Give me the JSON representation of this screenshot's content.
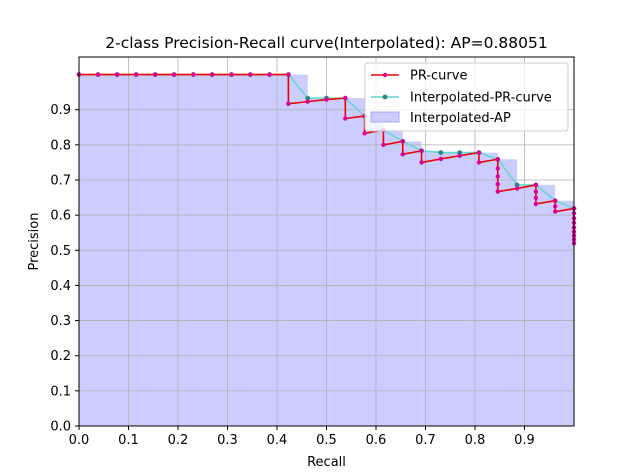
{
  "chart_data": {
    "type": "line",
    "title": "2-class Precision-Recall curve(Interpolated): AP=0.88051",
    "xlabel": "Recall",
    "ylabel": "Precision",
    "xlim": [
      0.0,
      1.0
    ],
    "ylim": [
      0.0,
      1.05
    ],
    "xticks": [
      "0.0",
      "0.1",
      "0.2",
      "0.3",
      "0.4",
      "0.5",
      "0.6",
      "0.7",
      "0.8",
      "0.9"
    ],
    "yticks": [
      "0.0",
      "0.1",
      "0.2",
      "0.3",
      "0.4",
      "0.5",
      "0.6",
      "0.7",
      "0.8",
      "0.9"
    ],
    "grid": true,
    "legend_position": "top-right",
    "legend": [
      "PR-curve",
      "Interpolated-PR-curve",
      "Interpolated-AP"
    ],
    "colors": {
      "pr_curve": "#ee0000",
      "pr_markers": "#dd0099",
      "interp_curve": "#66d6d0",
      "interp_markers": "#2a8a80",
      "ap_fill": "#cccdff",
      "grid": "#b0b0b0"
    },
    "series": [
      {
        "name": "PR-curve",
        "points": [
          [
            0.0,
            1.0
          ],
          [
            0.0385,
            1.0
          ],
          [
            0.077,
            1.0
          ],
          [
            0.1155,
            1.0
          ],
          [
            0.154,
            1.0
          ],
          [
            0.192,
            1.0
          ],
          [
            0.231,
            1.0
          ],
          [
            0.269,
            1.0
          ],
          [
            0.308,
            1.0
          ],
          [
            0.346,
            1.0
          ],
          [
            0.385,
            1.0
          ],
          [
            0.423,
            1.0
          ],
          [
            0.423,
            0.917
          ],
          [
            0.462,
            0.923
          ],
          [
            0.5,
            0.929
          ],
          [
            0.538,
            0.933
          ],
          [
            0.538,
            0.875
          ],
          [
            0.577,
            0.882
          ],
          [
            0.577,
            0.833
          ],
          [
            0.615,
            0.842
          ],
          [
            0.615,
            0.8
          ],
          [
            0.654,
            0.81
          ],
          [
            0.654,
            0.773
          ],
          [
            0.692,
            0.783
          ],
          [
            0.692,
            0.75
          ],
          [
            0.731,
            0.76
          ],
          [
            0.769,
            0.769
          ],
          [
            0.808,
            0.778
          ],
          [
            0.808,
            0.75
          ],
          [
            0.846,
            0.759
          ],
          [
            0.846,
            0.733
          ],
          [
            0.846,
            0.71
          ],
          [
            0.846,
            0.688
          ],
          [
            0.846,
            0.667
          ],
          [
            0.885,
            0.676
          ],
          [
            0.923,
            0.686
          ],
          [
            0.923,
            0.667
          ],
          [
            0.923,
            0.649
          ],
          [
            0.923,
            0.632
          ],
          [
            0.962,
            0.641
          ],
          [
            0.962,
            0.625
          ],
          [
            0.962,
            0.61
          ],
          [
            1.0,
            0.619
          ],
          [
            1.0,
            0.605
          ],
          [
            1.0,
            0.591
          ],
          [
            1.0,
            0.578
          ],
          [
            1.0,
            0.565
          ],
          [
            1.0,
            0.553
          ],
          [
            1.0,
            0.542
          ],
          [
            1.0,
            0.531
          ],
          [
            1.0,
            0.52
          ]
        ]
      },
      {
        "name": "Interpolated-PR-curve",
        "points": [
          [
            0.0,
            1.0
          ],
          [
            0.0385,
            1.0
          ],
          [
            0.077,
            1.0
          ],
          [
            0.1155,
            1.0
          ],
          [
            0.154,
            1.0
          ],
          [
            0.192,
            1.0
          ],
          [
            0.231,
            1.0
          ],
          [
            0.269,
            1.0
          ],
          [
            0.308,
            1.0
          ],
          [
            0.346,
            1.0
          ],
          [
            0.385,
            1.0
          ],
          [
            0.423,
            1.0
          ],
          [
            0.462,
            0.933
          ],
          [
            0.5,
            0.933
          ],
          [
            0.538,
            0.933
          ],
          [
            0.577,
            0.882
          ],
          [
            0.615,
            0.842
          ],
          [
            0.654,
            0.81
          ],
          [
            0.692,
            0.783
          ],
          [
            0.731,
            0.778
          ],
          [
            0.769,
            0.778
          ],
          [
            0.808,
            0.778
          ],
          [
            0.846,
            0.759
          ],
          [
            0.885,
            0.686
          ],
          [
            0.923,
            0.686
          ],
          [
            0.962,
            0.641
          ],
          [
            1.0,
            0.619
          ]
        ]
      }
    ]
  }
}
